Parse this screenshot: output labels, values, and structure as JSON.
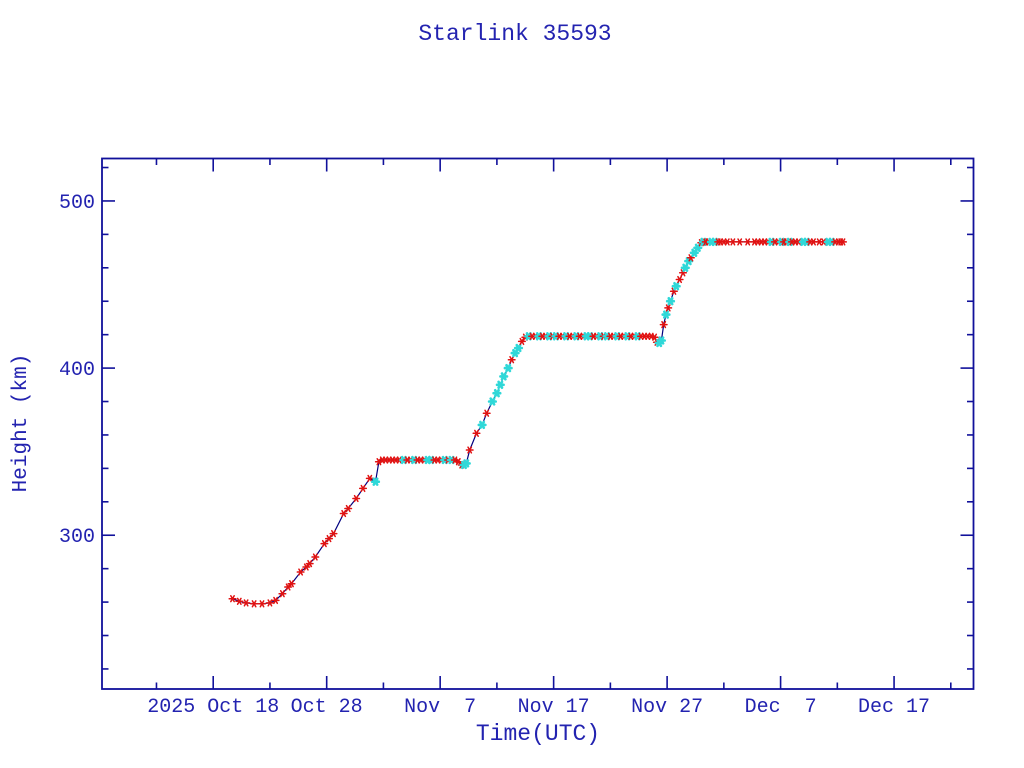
{
  "page": {
    "background": "#ffffff"
  },
  "colors": {
    "text": "#2323b0",
    "frame": "#11119b",
    "line": "#000080",
    "marker_red": "#e01212",
    "marker_cyan": "#2fd8d8"
  },
  "chart_data": {
    "type": "line",
    "title": "Starlink 35593",
    "xlabel": "Time(UTC)",
    "ylabel": "Height (km)",
    "legend": "none",
    "grid": "off",
    "x_axis": {
      "epoch_day_zero": "2025 Oct 18",
      "units": "days",
      "range_days": [
        -9.8,
        67.0
      ],
      "major_ticks": [
        {
          "day": 0,
          "label": "2025 Oct 18"
        },
        {
          "day": 10,
          "label": "Oct 28"
        },
        {
          "day": 20,
          "label": "Nov  7"
        },
        {
          "day": 30,
          "label": "Nov 17"
        },
        {
          "day": 40,
          "label": "Nov 27"
        },
        {
          "day": 50,
          "label": "Dec  7"
        },
        {
          "day": 60,
          "label": "Dec 17"
        }
      ],
      "minor_tick_days": [
        -5,
        5,
        15,
        25,
        35,
        45,
        55,
        65
      ]
    },
    "y_axis": {
      "units": "km",
      "range_km": [
        208,
        525.4
      ],
      "major_ticks": [
        {
          "km": 300,
          "label": "300"
        },
        {
          "km": 400,
          "label": "400"
        },
        {
          "km": 500,
          "label": "500"
        }
      ],
      "minor_step_km": 20
    },
    "series": [
      {
        "key": "r",
        "name": "height-samples-red",
        "marker": "red-asterisk",
        "color": "#e01212"
      },
      {
        "key": "c",
        "name": "height-samples-cyan",
        "marker": "cyan-asterisk",
        "color": "#2fd8d8"
      }
    ],
    "points_format": [
      "days_after_2025_Oct_18",
      "height_km",
      "series_key"
    ],
    "points": [
      [
        1.7,
        262,
        "r"
      ],
      [
        2.3,
        260.5,
        "r"
      ],
      [
        2.9,
        259.5,
        "r"
      ],
      [
        3.6,
        259,
        "r"
      ],
      [
        4.3,
        259,
        "r"
      ],
      [
        5.0,
        259.5,
        "r"
      ],
      [
        5.5,
        261,
        "r"
      ],
      [
        6.1,
        265,
        "r"
      ],
      [
        6.6,
        269,
        "r"
      ],
      [
        6.9,
        271,
        "r"
      ],
      [
        7.7,
        278,
        "r"
      ],
      [
        8.2,
        281,
        "r"
      ],
      [
        8.5,
        283,
        "r"
      ],
      [
        9.0,
        287,
        "r"
      ],
      [
        9.8,
        295,
        "r"
      ],
      [
        10.2,
        298,
        "r"
      ],
      [
        10.6,
        301,
        "r"
      ],
      [
        11.5,
        313,
        "r"
      ],
      [
        11.9,
        316,
        "r"
      ],
      [
        12.6,
        322,
        "r"
      ],
      [
        13.2,
        328,
        "r"
      ],
      [
        13.8,
        334,
        "r"
      ],
      [
        14.3,
        332,
        "c"
      ],
      [
        14.6,
        344,
        "r"
      ],
      [
        14.9,
        345,
        "r"
      ],
      [
        15.2,
        345,
        "r"
      ],
      [
        15.5,
        345,
        "r"
      ],
      [
        15.8,
        345,
        "r"
      ],
      [
        16.1,
        345,
        "r"
      ],
      [
        16.4,
        345,
        "r"
      ],
      [
        16.8,
        345,
        "c"
      ],
      [
        17.1,
        345,
        "r"
      ],
      [
        17.4,
        345,
        "r"
      ],
      [
        17.7,
        345,
        "c"
      ],
      [
        18.0,
        345,
        "r"
      ],
      [
        18.3,
        345,
        "r"
      ],
      [
        18.6,
        345,
        "r"
      ],
      [
        18.9,
        345,
        "c"
      ],
      [
        19.2,
        345,
        "c"
      ],
      [
        19.5,
        345,
        "r"
      ],
      [
        19.8,
        345,
        "r"
      ],
      [
        20.1,
        345,
        "r"
      ],
      [
        20.4,
        345,
        "c"
      ],
      [
        20.7,
        345,
        "r"
      ],
      [
        21.0,
        345,
        "c"
      ],
      [
        21.3,
        345,
        "r"
      ],
      [
        21.6,
        344,
        "r"
      ],
      [
        21.9,
        342,
        "r"
      ],
      [
        22.1,
        342,
        "c"
      ],
      [
        22.3,
        343,
        "c"
      ],
      [
        22.6,
        351,
        "r"
      ],
      [
        23.2,
        361,
        "r"
      ],
      [
        23.7,
        366,
        "c"
      ],
      [
        24.1,
        373,
        "r"
      ],
      [
        24.6,
        380,
        "c"
      ],
      [
        25.0,
        385,
        "c"
      ],
      [
        25.3,
        390,
        "c"
      ],
      [
        25.6,
        395,
        "c"
      ],
      [
        26.0,
        400,
        "c"
      ],
      [
        26.3,
        405,
        "r"
      ],
      [
        26.6,
        409,
        "c"
      ],
      [
        26.9,
        412,
        "c"
      ],
      [
        27.2,
        416,
        "r"
      ],
      [
        27.5,
        418.5,
        "r"
      ],
      [
        27.8,
        419,
        "c"
      ],
      [
        28.1,
        419,
        "r"
      ],
      [
        28.4,
        419,
        "r"
      ],
      [
        28.7,
        419,
        "c"
      ],
      [
        29.0,
        419,
        "r"
      ],
      [
        29.3,
        419,
        "r"
      ],
      [
        29.6,
        419,
        "c"
      ],
      [
        29.9,
        419,
        "r"
      ],
      [
        30.2,
        419,
        "c"
      ],
      [
        30.5,
        419,
        "r"
      ],
      [
        30.8,
        419,
        "r"
      ],
      [
        31.1,
        419,
        "c"
      ],
      [
        31.4,
        419,
        "r"
      ],
      [
        31.7,
        419,
        "r"
      ],
      [
        32.0,
        419,
        "c"
      ],
      [
        32.3,
        419,
        "r"
      ],
      [
        32.6,
        419,
        "r"
      ],
      [
        32.9,
        419,
        "c"
      ],
      [
        33.2,
        419,
        "c"
      ],
      [
        33.5,
        419,
        "r"
      ],
      [
        33.8,
        419,
        "r"
      ],
      [
        34.1,
        419,
        "c"
      ],
      [
        34.4,
        419,
        "r"
      ],
      [
        34.7,
        419,
        "c"
      ],
      [
        35.0,
        419,
        "r"
      ],
      [
        35.3,
        419,
        "r"
      ],
      [
        35.6,
        419,
        "c"
      ],
      [
        35.9,
        419,
        "r"
      ],
      [
        36.2,
        419,
        "r"
      ],
      [
        36.5,
        419,
        "c"
      ],
      [
        36.8,
        419,
        "r"
      ],
      [
        37.1,
        419,
        "r"
      ],
      [
        37.4,
        419,
        "c"
      ],
      [
        37.7,
        419,
        "r"
      ],
      [
        38.0,
        419,
        "r"
      ],
      [
        38.3,
        419,
        "r"
      ],
      [
        38.6,
        419,
        "r"
      ],
      [
        38.9,
        418.5,
        "r"
      ],
      [
        39.1,
        415.5,
        "r"
      ],
      [
        39.3,
        415,
        "c"
      ],
      [
        39.5,
        416.5,
        "c"
      ],
      [
        39.7,
        426,
        "r"
      ],
      [
        39.9,
        432,
        "c"
      ],
      [
        40.1,
        436,
        "r"
      ],
      [
        40.3,
        440,
        "c"
      ],
      [
        40.6,
        446,
        "r"
      ],
      [
        40.8,
        449,
        "c"
      ],
      [
        41.1,
        453,
        "r"
      ],
      [
        41.4,
        457,
        "r"
      ],
      [
        41.6,
        460,
        "c"
      ],
      [
        41.9,
        464,
        "c"
      ],
      [
        42.1,
        466,
        "r"
      ],
      [
        42.4,
        469,
        "c"
      ],
      [
        42.7,
        472,
        "c"
      ],
      [
        43.0,
        475,
        "r"
      ],
      [
        43.2,
        475.5,
        "c"
      ],
      [
        43.4,
        475.5,
        "r"
      ],
      [
        43.6,
        475.5,
        "r"
      ],
      [
        43.9,
        475.5,
        "c"
      ],
      [
        44.2,
        475.5,
        "c"
      ],
      [
        44.5,
        475.5,
        "r"
      ],
      [
        44.7,
        475.5,
        "r"
      ],
      [
        45.0,
        475.5,
        "r"
      ],
      [
        45.3,
        475.5,
        "r"
      ],
      [
        45.8,
        475.5,
        "r"
      ],
      [
        46.4,
        475.5,
        "r"
      ],
      [
        47.1,
        475.5,
        "r"
      ],
      [
        47.7,
        475.5,
        "r"
      ],
      [
        48.0,
        475.5,
        "r"
      ],
      [
        48.3,
        475.5,
        "r"
      ],
      [
        48.6,
        475.5,
        "r"
      ],
      [
        48.9,
        475.5,
        "r"
      ],
      [
        49.2,
        475.5,
        "c"
      ],
      [
        49.5,
        475.5,
        "r"
      ],
      [
        49.8,
        475.5,
        "r"
      ],
      [
        50.1,
        475.5,
        "c"
      ],
      [
        50.3,
        475.5,
        "r"
      ],
      [
        50.5,
        475.5,
        "r"
      ],
      [
        50.8,
        475.5,
        "c"
      ],
      [
        51.0,
        475.5,
        "r"
      ],
      [
        51.3,
        475.5,
        "r"
      ],
      [
        51.6,
        475.5,
        "r"
      ],
      [
        52.0,
        475.5,
        "c"
      ],
      [
        52.3,
        475.5,
        "c"
      ],
      [
        52.6,
        475.5,
        "r"
      ],
      [
        52.9,
        475.5,
        "r"
      ],
      [
        53.4,
        475.5,
        "r"
      ],
      [
        53.8,
        475.5,
        "r"
      ],
      [
        54.2,
        475.5,
        "c"
      ],
      [
        54.5,
        475.5,
        "c"
      ],
      [
        54.8,
        475.5,
        "r"
      ],
      [
        55.1,
        475.5,
        "r"
      ],
      [
        55.3,
        475.5,
        "r"
      ],
      [
        55.5,
        475.5,
        "r"
      ]
    ]
  }
}
